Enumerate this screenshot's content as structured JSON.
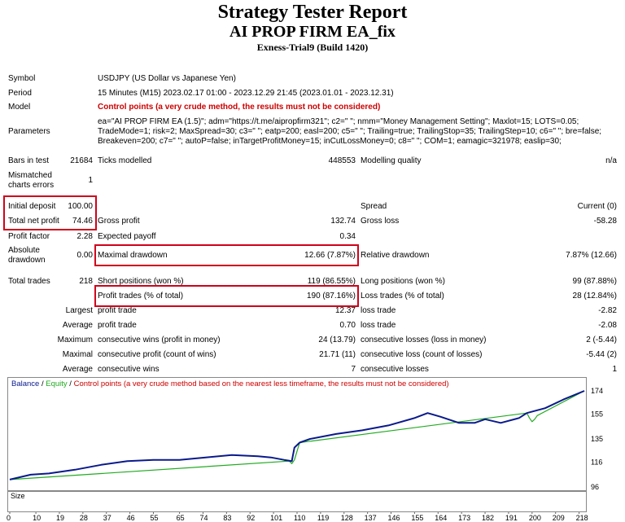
{
  "header": {
    "title": "Strategy Tester Report",
    "ea_name": "AI PROP FIRM EA_fix",
    "account": "Exness-Trial9 (Build 1420)"
  },
  "info": {
    "symbol_label": "Symbol",
    "symbol": "USDJPY (US Dollar vs Japanese Yen)",
    "period_label": "Period",
    "period": "15 Minutes (M15) 2023.02.17 01:00 - 2023.12.29 21:45 (2023.01.01 - 2023.12.31)",
    "model_label": "Model",
    "model": "Control points (a very crude method, the results must not be considered)",
    "parameters_label": "Parameters",
    "parameters_line1": "ea=\"AI PROP FIRM EA (1.5)\"; adm=\"https://t.me/aipropfirm321\"; c2=\" \"; nmm=\"Money Management Setting\"; Maxlot=15; LOTS=0.05;",
    "parameters_line2": "TradeMode=1; risk=2; MaxSpread=30; c3=\" \"; eatp=200; easl=200; c5=\" \"; Trailing=true; TrailingStop=35; TrailingStep=10; c6=\" \"; bre=false;",
    "parameters_line3": "Breakeven=200; c7=\" \"; autoP=false; inTargetProfitMoney=15; inCutLossMoney=0; c8=\" \"; COM=1; eamagic=321978; easlip=30;"
  },
  "bars": {
    "bars_label": "Bars in test",
    "bars": "21684",
    "ticks_label": "Ticks modelled",
    "ticks": "448553",
    "quality_label": "Modelling quality",
    "quality": "n/a",
    "mismatch_label1": "Mismatched",
    "mismatch_label2": "charts errors",
    "mismatch": "1"
  },
  "results": {
    "initial_deposit_label": "Initial deposit",
    "initial_deposit": "100.00",
    "spread_label": "Spread",
    "spread": "Current (0)",
    "net_profit_label": "Total net profit",
    "net_profit": "74.46",
    "gross_profit_label": "Gross profit",
    "gross_profit": "132.74",
    "gross_loss_label": "Gross loss",
    "gross_loss": "-58.28",
    "profit_factor_label": "Profit factor",
    "profit_factor": "2.28",
    "expected_payoff_label": "Expected payoff",
    "expected_payoff": "0.34",
    "abs_dd_label1": "Absolute",
    "abs_dd_label2": "drawdown",
    "abs_dd": "0.00",
    "max_dd_label": "Maximal drawdown",
    "max_dd": "12.66 (7.87%)",
    "rel_dd_label": "Relative drawdown",
    "rel_dd": "7.87% (12.66)",
    "total_trades_label": "Total trades",
    "total_trades": "218",
    "short_label": "Short positions (won %)",
    "short": "119 (86.55%)",
    "long_label": "Long positions (won %)",
    "long": "99 (87.88%)",
    "profit_trades_label": "Profit trades (% of total)",
    "profit_trades": "190 (87.16%)",
    "loss_trades_label": "Loss trades (% of total)",
    "loss_trades": "28 (12.84%)",
    "largest_label": "Largest",
    "largest_profit_label": "profit trade",
    "largest_profit": "12.37",
    "largest_loss_label": "loss trade",
    "largest_loss": "-2.82",
    "average_label": "Average",
    "average_profit_label": "profit trade",
    "average_profit": "0.70",
    "average_loss_label": "loss trade",
    "average_loss": "-2.08",
    "maximum_label": "Maximum",
    "max_cons_wins_label": "consecutive wins (profit in money)",
    "max_cons_wins": "24 (13.79)",
    "max_cons_losses_label": "consecutive losses (loss in money)",
    "max_cons_losses": "2 (-5.44)",
    "maximal_label": "Maximal",
    "maximal_cons_profit_label": "consecutive profit (count of wins)",
    "maximal_cons_profit": "21.71 (11)",
    "maximal_cons_loss_label": "consecutive loss (count of losses)",
    "maximal_cons_loss": "-5.44 (2)",
    "avg_label": "Average",
    "avg_cons_wins_label": "consecutive wins",
    "avg_cons_wins": "7",
    "avg_cons_losses_label": "consecutive losses",
    "avg_cons_losses": "1"
  },
  "chart_legend": {
    "balance": "Balance",
    "equity": "Equity",
    "note": "Control points (a very crude method based on the nearest less timeframe, the results must not be considered)",
    "size": "Size"
  },
  "chart_data": {
    "type": "line",
    "ylabels": [
      "174",
      "155",
      "135",
      "116",
      "96"
    ],
    "ylim": [
      96,
      174
    ],
    "xlabels": [
      "0",
      "10",
      "19",
      "28",
      "37",
      "46",
      "55",
      "65",
      "74",
      "83",
      "92",
      "101",
      "110",
      "119",
      "128",
      "137",
      "146",
      "155",
      "164",
      "173",
      "182",
      "191",
      "200",
      "209",
      "218"
    ],
    "xlim": [
      0,
      220
    ],
    "series": [
      {
        "name": "Balance",
        "color": "#0a1a8c",
        "x": [
          0,
          8,
          15,
          25,
          35,
          45,
          55,
          65,
          75,
          85,
          95,
          100,
          105,
          108,
          109,
          111,
          115,
          125,
          135,
          145,
          155,
          160,
          165,
          172,
          178,
          182,
          188,
          195,
          198,
          205,
          212,
          220
        ],
        "values": [
          102,
          106,
          107,
          110,
          114,
          117,
          118,
          118,
          120,
          122,
          121,
          120,
          118,
          117,
          128,
          132,
          135,
          139,
          142,
          146,
          152,
          156,
          153,
          148,
          148,
          151,
          148,
          152,
          156,
          160,
          167,
          174
        ]
      },
      {
        "name": "Equity",
        "color": "#22aa22",
        "x": [
          0,
          107,
          108,
          109,
          110,
          111,
          198,
          199,
          200,
          201,
          202,
          220
        ],
        "values": [
          102,
          117,
          115,
          118,
          125,
          132,
          156,
          152,
          149,
          151,
          154,
          174
        ]
      }
    ],
    "colors": {
      "balance": "#0a1a8c",
      "equity": "#22aa22",
      "note": "#cc0000",
      "size": "#22aa22"
    }
  }
}
